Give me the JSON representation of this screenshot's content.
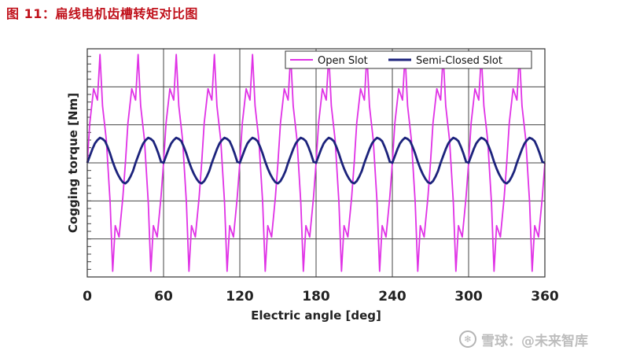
{
  "figure": {
    "title": "图 11：扁线电机齿槽转矩对比图"
  },
  "watermark": {
    "icon": "snowball-logo-icon",
    "text": "雪球：@未来智库"
  },
  "colors": {
    "open_slot": "#e032e6",
    "semi_closed_slot": "#1c237c",
    "grid": "#444444",
    "title": "#c0111b"
  },
  "chart_data": {
    "type": "line",
    "title": "",
    "xlabel": "Electric angle [deg]",
    "ylabel": "Cogging torque [Nm]",
    "xlim": [
      0,
      360
    ],
    "ylim": [
      -1,
      1
    ],
    "xticks": [
      0,
      60,
      120,
      180,
      240,
      300,
      360
    ],
    "yticks_labeled": false,
    "grid": true,
    "legend_position": "top-right",
    "series": [
      {
        "name": "Open Slot",
        "color": "#e032e6",
        "x": [
          0,
          2,
          5,
          8,
          10,
          12,
          15,
          18,
          20,
          22,
          25,
          28,
          30,
          32,
          35,
          38,
          40,
          42,
          45,
          48,
          50,
          52,
          55,
          58,
          60,
          62,
          65,
          68,
          70,
          72,
          75,
          78,
          80,
          82,
          85,
          88,
          90,
          92,
          95,
          98,
          100,
          102,
          105,
          108,
          110,
          112,
          115,
          118,
          120,
          122,
          125,
          128,
          130,
          132,
          135,
          138,
          140,
          142,
          145,
          148,
          150,
          152,
          155,
          158,
          160,
          162,
          165,
          168,
          170,
          172,
          175,
          178,
          180,
          182,
          185,
          188,
          190,
          192,
          195,
          198,
          200,
          202,
          205,
          208,
          210,
          212,
          215,
          218,
          220,
          222,
          225,
          228,
          230,
          232,
          235,
          238,
          240,
          242,
          245,
          248,
          250,
          252,
          255,
          258,
          260,
          262,
          265,
          268,
          270,
          272,
          275,
          278,
          280,
          282,
          285,
          288,
          290,
          292,
          295,
          298,
          300,
          302,
          305,
          308,
          310,
          312,
          315,
          318,
          320,
          322,
          325,
          328,
          330,
          332,
          335,
          338,
          340,
          342,
          345,
          348,
          350,
          352,
          355,
          358,
          360
        ],
        "y": [
          0.0,
          0.35,
          0.65,
          0.55,
          0.95,
          0.5,
          0.2,
          -0.35,
          -0.95,
          -0.55,
          -0.65,
          -0.3,
          0.0,
          0.35,
          0.65,
          0.55,
          0.95,
          0.5,
          0.2,
          -0.35,
          -0.95,
          -0.55,
          -0.65,
          -0.3,
          0.0,
          0.35,
          0.65,
          0.55,
          0.95,
          0.5,
          0.2,
          -0.35,
          -0.95,
          -0.55,
          -0.65,
          -0.3,
          0.0,
          0.35,
          0.65,
          0.55,
          0.95,
          0.5,
          0.2,
          -0.35,
          -0.95,
          -0.55,
          -0.65,
          -0.3,
          0.0,
          0.35,
          0.65,
          0.55,
          0.95,
          0.5,
          0.2,
          -0.35,
          -0.95,
          -0.55,
          -0.65,
          -0.3,
          0.0,
          0.35,
          0.65,
          0.55,
          0.95,
          0.5,
          0.2,
          -0.35,
          -0.95,
          -0.55,
          -0.65,
          -0.3,
          0.0,
          0.35,
          0.65,
          0.55,
          0.95,
          0.5,
          0.2,
          -0.35,
          -0.95,
          -0.55,
          -0.65,
          -0.3,
          0.0,
          0.35,
          0.65,
          0.55,
          0.95,
          0.5,
          0.2,
          -0.35,
          -0.95,
          -0.55,
          -0.65,
          -0.3,
          0.0,
          0.35,
          0.65,
          0.55,
          0.95,
          0.5,
          0.2,
          -0.35,
          -0.95,
          -0.55,
          -0.65,
          -0.3,
          0.0,
          0.35,
          0.65,
          0.55,
          0.95,
          0.5,
          0.2,
          -0.35,
          -0.95,
          -0.55,
          -0.65,
          -0.3,
          0.0,
          0.35,
          0.65,
          0.55,
          0.95,
          0.5,
          0.2,
          -0.35,
          -0.95,
          -0.55,
          -0.65,
          -0.3,
          0.0,
          0.35,
          0.65,
          0.55,
          0.95,
          0.5,
          0.2,
          -0.35,
          -0.95,
          -0.55,
          -0.65,
          -0.3,
          0.0
        ]
      },
      {
        "name": "Semi-Closed Slot",
        "color": "#1c237c",
        "x": [
          0,
          2,
          4,
          6,
          8,
          10,
          12,
          14,
          16,
          18,
          20,
          22,
          24,
          26,
          28,
          30,
          32,
          34,
          36,
          38,
          40,
          42,
          44,
          46,
          48,
          50,
          52,
          54,
          56,
          58,
          60,
          62,
          64,
          66,
          68,
          70,
          72,
          74,
          76,
          78,
          80,
          82,
          84,
          86,
          88,
          90,
          92,
          94,
          96,
          98,
          100,
          102,
          104,
          106,
          108,
          110,
          112,
          114,
          116,
          118,
          120,
          122,
          124,
          126,
          128,
          130,
          132,
          134,
          136,
          138,
          140,
          142,
          144,
          146,
          148,
          150,
          152,
          154,
          156,
          158,
          160,
          162,
          164,
          166,
          168,
          170,
          172,
          174,
          176,
          178,
          180,
          182,
          184,
          186,
          188,
          190,
          192,
          194,
          196,
          198,
          200,
          202,
          204,
          206,
          208,
          210,
          212,
          214,
          216,
          218,
          220,
          222,
          224,
          226,
          228,
          230,
          232,
          234,
          236,
          238,
          240,
          242,
          244,
          246,
          248,
          250,
          252,
          254,
          256,
          258,
          260,
          262,
          264,
          266,
          268,
          270,
          272,
          274,
          276,
          278,
          280,
          282,
          284,
          286,
          288,
          290,
          292,
          294,
          296,
          298,
          300,
          302,
          304,
          306,
          308,
          310,
          312,
          314,
          316,
          318,
          320,
          322,
          324,
          326,
          328,
          330,
          332,
          334,
          336,
          338,
          340,
          342,
          344,
          346,
          348,
          350,
          352,
          354,
          356,
          358,
          360
        ],
        "y": [
          0.0,
          0.06,
          0.12,
          0.17,
          0.2,
          0.22,
          0.21,
          0.19,
          0.14,
          0.08,
          0.01,
          -0.05,
          -0.1,
          -0.14,
          -0.17,
          -0.18,
          -0.16,
          -0.12,
          -0.07,
          0.0,
          0.06,
          0.12,
          0.17,
          0.2,
          0.22,
          0.21,
          0.19,
          0.14,
          0.08,
          0.01,
          0.0,
          0.06,
          0.12,
          0.17,
          0.2,
          0.22,
          0.21,
          0.19,
          0.14,
          0.08,
          0.01,
          -0.05,
          -0.1,
          -0.14,
          -0.17,
          -0.18,
          -0.16,
          -0.12,
          -0.07,
          0.0,
          0.06,
          0.12,
          0.17,
          0.2,
          0.22,
          0.21,
          0.19,
          0.14,
          0.08,
          0.01,
          0.0,
          0.06,
          0.12,
          0.17,
          0.2,
          0.22,
          0.21,
          0.19,
          0.14,
          0.08,
          0.01,
          -0.05,
          -0.1,
          -0.14,
          -0.17,
          -0.18,
          -0.16,
          -0.12,
          -0.07,
          0.0,
          0.06,
          0.12,
          0.17,
          0.2,
          0.22,
          0.21,
          0.19,
          0.14,
          0.08,
          0.01,
          0.0,
          0.06,
          0.12,
          0.17,
          0.2,
          0.22,
          0.21,
          0.19,
          0.14,
          0.08,
          0.01,
          -0.05,
          -0.1,
          -0.14,
          -0.17,
          -0.18,
          -0.16,
          -0.12,
          -0.07,
          0.0,
          0.06,
          0.12,
          0.17,
          0.2,
          0.22,
          0.21,
          0.19,
          0.14,
          0.08,
          0.01,
          0.0,
          0.06,
          0.12,
          0.17,
          0.2,
          0.22,
          0.21,
          0.19,
          0.14,
          0.08,
          0.01,
          -0.05,
          -0.1,
          -0.14,
          -0.17,
          -0.18,
          -0.16,
          -0.12,
          -0.07,
          0.0,
          0.06,
          0.12,
          0.17,
          0.2,
          0.22,
          0.21,
          0.19,
          0.14,
          0.08,
          0.01,
          0.0,
          0.06,
          0.12,
          0.17,
          0.2,
          0.22,
          0.21,
          0.19,
          0.14,
          0.08,
          0.01,
          -0.05,
          -0.1,
          -0.14,
          -0.17,
          -0.18,
          -0.16,
          -0.12,
          -0.07,
          0.0,
          0.06,
          0.12,
          0.17,
          0.2,
          0.22,
          0.21,
          0.19,
          0.14,
          0.08,
          0.01,
          0.0
        ]
      }
    ]
  }
}
